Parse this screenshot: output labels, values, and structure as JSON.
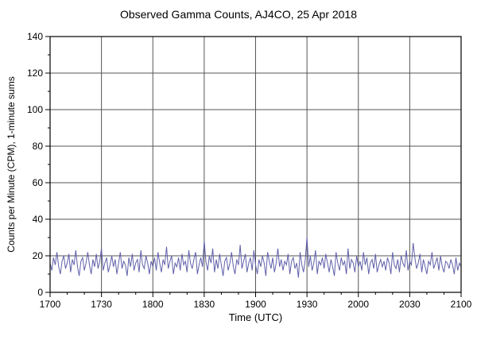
{
  "chart_data": {
    "type": "line",
    "title": "Observed Gamma Counts, AJ4CO, 25 Apr 2018",
    "xlabel": "Time (UTC)",
    "ylabel": "Counts per Minute (CPM), 1-minute sums",
    "x_ticks": [
      "1700",
      "1730",
      "1800",
      "1830",
      "1900",
      "1930",
      "2000",
      "2030",
      "2100"
    ],
    "x_tick_interval_minutes": 30,
    "x_minor_tick_minutes": 10,
    "x_range_minutes": [
      0,
      240
    ],
    "y_ticks": [
      0,
      20,
      40,
      60,
      80,
      100,
      120,
      140
    ],
    "y_minor_tick_step": 10,
    "ylim": [
      0,
      140
    ],
    "grid": true,
    "legend": "none",
    "line_color": "#6060aa",
    "grid_color": "#555555",
    "frame_color": "#000000",
    "series": [
      {
        "name": "Observed gamma counts",
        "values": [
          16,
          12,
          19,
          15,
          22,
          14,
          10,
          17,
          20,
          13,
          16,
          21,
          11,
          18,
          15,
          23,
          14,
          9,
          17,
          19,
          12,
          16,
          22,
          15,
          10,
          18,
          14,
          21,
          13,
          17,
          24,
          12,
          16,
          19,
          11,
          15,
          20,
          14,
          18,
          10,
          16,
          22,
          13,
          17,
          15,
          9,
          19,
          14,
          21,
          12,
          16,
          18,
          11,
          23,
          15,
          13,
          20,
          16,
          10,
          17,
          14,
          19,
          12,
          22,
          16,
          11,
          18,
          15,
          25,
          13,
          17,
          20,
          10,
          16,
          14,
          19,
          12,
          21,
          15,
          17,
          11,
          23,
          16,
          13,
          18,
          22,
          10,
          15,
          19,
          14,
          28,
          17,
          12,
          20,
          16,
          24,
          11,
          18,
          13,
          21,
          15,
          9,
          17,
          19,
          12,
          16,
          22,
          14,
          10,
          18,
          15,
          26,
          13,
          17,
          21,
          11,
          16,
          19,
          12,
          23,
          15,
          10,
          18,
          14,
          20,
          16,
          9,
          22,
          17,
          13,
          19,
          11,
          16,
          24,
          14,
          18,
          12,
          17,
          15,
          21,
          10,
          17,
          19,
          13,
          16,
          8,
          22,
          15,
          11,
          18,
          30,
          14,
          20,
          12,
          16,
          23,
          10,
          17,
          15,
          19,
          13,
          21,
          16,
          11,
          18,
          14,
          9,
          22,
          16,
          12,
          19,
          15,
          17,
          10,
          24,
          13,
          18,
          16,
          11,
          20,
          14,
          17,
          12,
          22,
          15,
          19,
          10,
          16,
          18,
          13,
          21,
          11,
          15,
          18,
          14,
          17,
          12,
          19,
          16,
          10,
          22,
          15,
          13,
          18,
          11,
          20,
          16,
          14,
          23,
          12,
          17,
          15,
          27,
          19,
          13,
          16,
          21,
          11,
          18,
          14,
          10,
          17,
          15,
          22,
          13,
          16,
          19,
          12,
          20,
          14,
          11,
          17,
          16,
          13,
          18,
          15,
          10,
          19,
          12,
          16,
          14
        ]
      }
    ]
  }
}
